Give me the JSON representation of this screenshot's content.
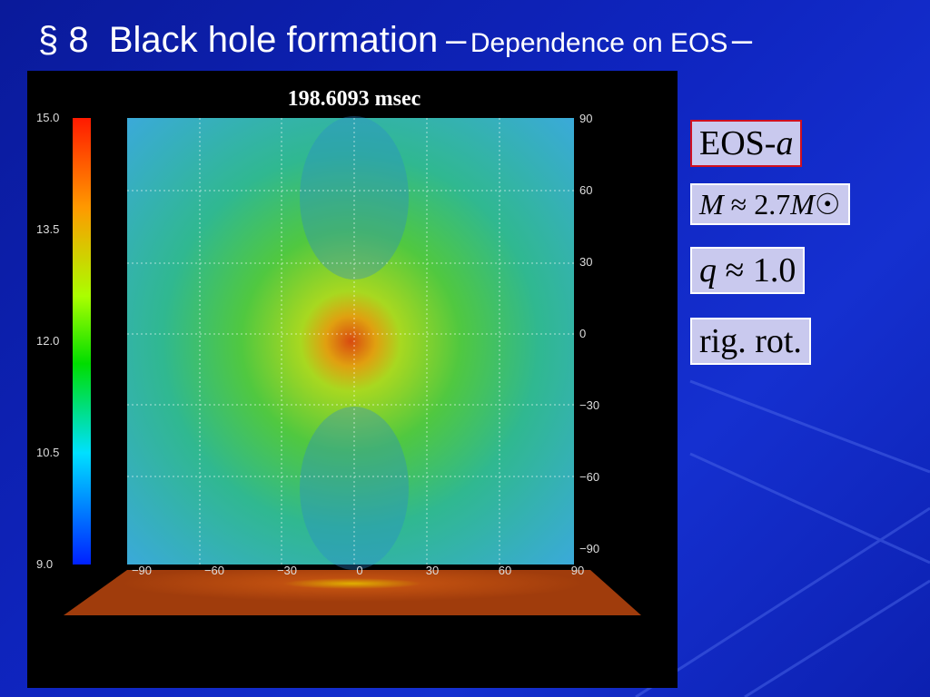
{
  "title": {
    "main": "§ 8  Black hole formation",
    "dash1": "–",
    "sub": "Dependence on EOS",
    "dash2": "–"
  },
  "figure": {
    "time_label": "198.6093 msec",
    "colorbar_labels": [
      "15.0",
      "13.5",
      "12.0",
      "10.5",
      "9.0"
    ],
    "y_labels": [
      "90",
      "60",
      "30",
      "0",
      "−30",
      "−60",
      "−90"
    ],
    "x_labels": [
      "−90",
      "−60",
      "−30",
      "0",
      "30",
      "60",
      "90"
    ]
  },
  "boxes": [
    {
      "parts": [
        {
          "text": "EOS-",
          "italic": false
        },
        {
          "text": "a",
          "italic": true
        }
      ]
    },
    {
      "parts": [
        {
          "text": "M",
          "italic": true
        },
        {
          "text": " ≈ 2.7",
          "italic": false
        },
        {
          "text": "M",
          "italic": true
        },
        {
          "text": "☉",
          "italic": false
        }
      ]
    },
    {
      "parts": [
        {
          "text": "q",
          "italic": true
        },
        {
          "text": " ≈ 1.0",
          "italic": false
        }
      ]
    },
    {
      "parts": [
        {
          "text": "rig. rot.",
          "italic": false
        }
      ]
    }
  ]
}
